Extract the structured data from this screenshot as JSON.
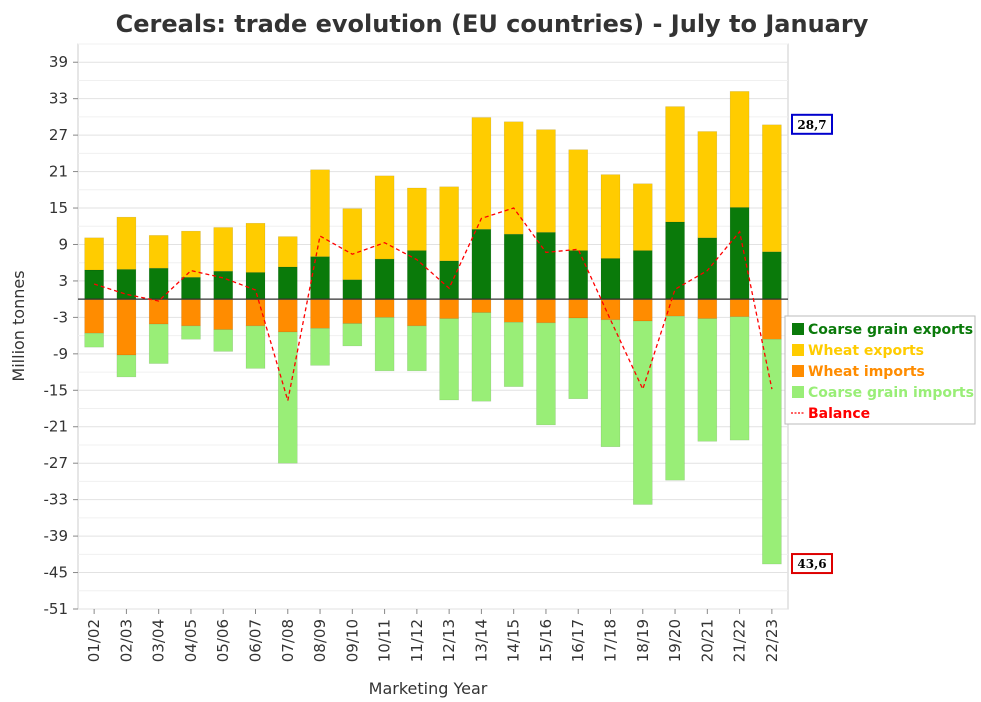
{
  "chart_data": {
    "type": "bar",
    "title": "Cereals: trade evolution (EU countries) - July to January",
    "xlabel": "Marketing Year",
    "ylabel": "Million tonnes",
    "ylim": [
      -51,
      42
    ],
    "yticks": [
      39,
      33,
      27,
      21,
      15,
      9,
      3,
      -3,
      -9,
      -15,
      -21,
      -27,
      -33,
      -39,
      -45,
      -51
    ],
    "grid": true,
    "legend_position": "right",
    "categories": [
      "01/02",
      "02/03",
      "03/04",
      "04/05",
      "05/06",
      "06/07",
      "07/08",
      "08/09",
      "09/10",
      "10/11",
      "11/12",
      "12/13",
      "13/14",
      "14/15",
      "15/16",
      "16/17",
      "17/18",
      "18/19",
      "19/20",
      "20/21",
      "21/22",
      "22/23"
    ],
    "series": [
      {
        "name": "Coarse grain exports",
        "kind": "stacked-bar",
        "color": "#0a7a0a",
        "values": [
          4.8,
          4.9,
          5.1,
          3.6,
          4.6,
          4.4,
          5.3,
          7.0,
          3.2,
          6.6,
          8.0,
          6.3,
          11.5,
          10.7,
          11.0,
          8.0,
          6.7,
          8.0,
          12.7,
          10.1,
          15.1,
          7.8
        ]
      },
      {
        "name": "Wheat exports",
        "kind": "stacked-bar",
        "color": "#ffcc00",
        "values": [
          5.3,
          8.6,
          5.4,
          7.6,
          7.2,
          8.1,
          5.0,
          14.3,
          11.7,
          13.7,
          10.3,
          12.2,
          18.4,
          18.5,
          16.9,
          16.6,
          13.8,
          11.0,
          19.0,
          17.5,
          19.1,
          20.9
        ]
      },
      {
        "name": "Wheat imports",
        "kind": "stacked-bar",
        "color": "#ff8c00",
        "values": [
          -5.6,
          -9.2,
          -4.1,
          -4.4,
          -5.0,
          -4.4,
          -5.4,
          -4.8,
          -4.0,
          -3.0,
          -4.4,
          -3.2,
          -2.2,
          -3.8,
          -3.9,
          -3.1,
          -3.4,
          -3.6,
          -2.8,
          -3.2,
          -2.9,
          -6.6
        ]
      },
      {
        "name": "Coarse grain imports",
        "kind": "stacked-bar",
        "color": "#99ee77",
        "values": [
          -2.3,
          -3.6,
          -6.5,
          -2.2,
          -3.6,
          -7.0,
          -21.6,
          -6.1,
          -3.7,
          -8.8,
          -7.4,
          -13.4,
          -14.6,
          -10.6,
          -16.8,
          -13.3,
          -20.9,
          -30.2,
          -27.0,
          -20.2,
          -20.3,
          -37.0
        ]
      },
      {
        "name": "Balance",
        "kind": "line",
        "color": "#ff0000",
        "values": [
          2.5,
          0.8,
          -0.3,
          4.7,
          3.5,
          1.5,
          -16.7,
          10.4,
          7.4,
          9.3,
          6.5,
          1.8,
          13.3,
          15.0,
          7.7,
          8.2,
          -3.4,
          -14.8,
          1.6,
          4.7,
          11.1,
          -14.8
        ]
      }
    ],
    "annotations": [
      {
        "text": "28,7",
        "value": 28.7,
        "border_color": "#0000cc"
      },
      {
        "text": "43,6",
        "value": -43.6,
        "border_color": "#dd0000"
      }
    ]
  }
}
